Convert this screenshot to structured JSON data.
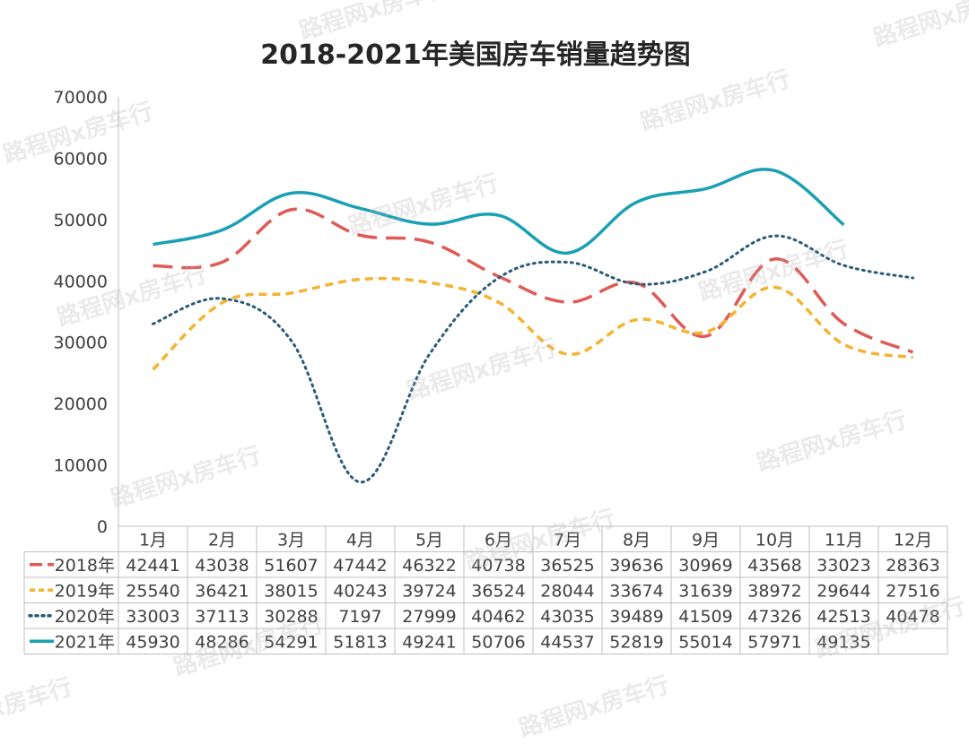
{
  "watermark": "路程网x房车行",
  "chart_data": {
    "type": "line",
    "title": "2018-2021年美国房车销量趋势图",
    "categories": [
      "1月",
      "2月",
      "3月",
      "4月",
      "5月",
      "6月",
      "7月",
      "8月",
      "9月",
      "10月",
      "11月",
      "12月"
    ],
    "ylim": [
      0,
      70000
    ],
    "yticks": [
      0,
      10000,
      20000,
      30000,
      40000,
      50000,
      60000,
      70000
    ],
    "grid": false,
    "legend": "data-table-left",
    "series": [
      {
        "name": "2018年",
        "color": "#e05a56",
        "dash": "dashed",
        "values": [
          42441,
          43038,
          51607,
          47442,
          46322,
          40738,
          36525,
          39636,
          30969,
          43568,
          33023,
          28363
        ]
      },
      {
        "name": "2019年",
        "color": "#f5b332",
        "dash": "short-dashed",
        "values": [
          25540,
          36421,
          38015,
          40243,
          39724,
          36524,
          28044,
          33674,
          31639,
          38972,
          29644,
          27516
        ]
      },
      {
        "name": "2020年",
        "color": "#2a5a78",
        "dash": "dotted",
        "values": [
          33003,
          37113,
          30288,
          7197,
          27999,
          40462,
          43035,
          39489,
          41509,
          47326,
          42513,
          40478
        ]
      },
      {
        "name": "2021年",
        "color": "#1aa0b4",
        "dash": "solid",
        "values": [
          45930,
          48286,
          54291,
          51813,
          49241,
          50706,
          44537,
          52819,
          55014,
          57971,
          49135,
          null
        ]
      }
    ]
  }
}
